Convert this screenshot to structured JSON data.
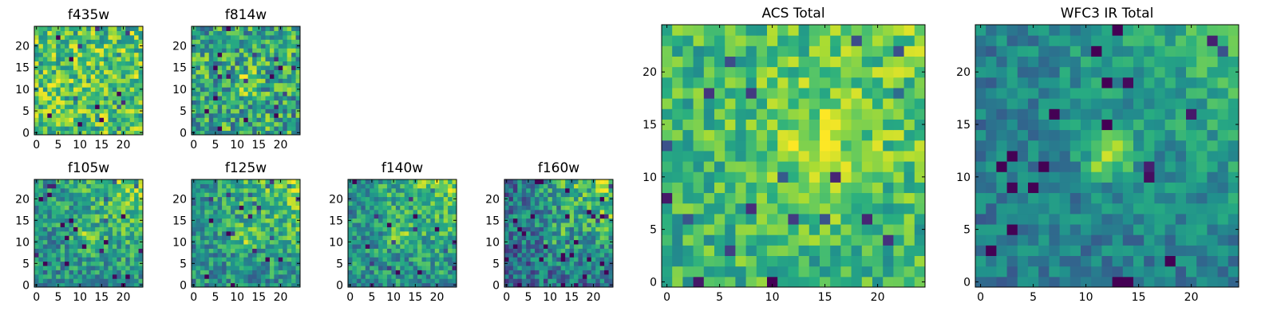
{
  "chart_data": [
    {
      "type": "heatmap",
      "title": "f435w",
      "size": 25,
      "seed": 11,
      "profile": "flat",
      "xticks": [
        0,
        5,
        10,
        15,
        20
      ],
      "yticks": [
        0,
        5,
        10,
        15,
        20
      ],
      "xlim": [
        -0.5,
        24.5
      ],
      "ylim": [
        -0.5,
        24.5
      ],
      "colormap": "viridis"
    },
    {
      "type": "heatmap",
      "title": "f814w",
      "size": 25,
      "seed": 23,
      "profile": "mid",
      "xticks": [
        0,
        5,
        10,
        15,
        20
      ],
      "yticks": [
        0,
        5,
        10,
        15,
        20
      ],
      "xlim": [
        -0.5,
        24.5
      ],
      "ylim": [
        -0.5,
        24.5
      ],
      "colormap": "viridis"
    },
    {
      "type": "heatmap",
      "title": "f105w",
      "size": 25,
      "seed": 37,
      "profile": "corner",
      "xticks": [
        0,
        5,
        10,
        15,
        20
      ],
      "yticks": [
        0,
        5,
        10,
        15,
        20
      ],
      "xlim": [
        -0.5,
        24.5
      ],
      "ylim": [
        -0.5,
        24.5
      ],
      "colormap": "viridis"
    },
    {
      "type": "heatmap",
      "title": "f125w",
      "size": 25,
      "seed": 41,
      "profile": "corner",
      "xticks": [
        0,
        5,
        10,
        15,
        20
      ],
      "yticks": [
        0,
        5,
        10,
        15,
        20
      ],
      "xlim": [
        -0.5,
        24.5
      ],
      "ylim": [
        -0.5,
        24.5
      ],
      "colormap": "viridis"
    },
    {
      "type": "heatmap",
      "title": "f140w",
      "size": 25,
      "seed": 53,
      "profile": "corner",
      "xticks": [
        0,
        5,
        10,
        15,
        20
      ],
      "yticks": [
        0,
        5,
        10,
        15,
        20
      ],
      "xlim": [
        -0.5,
        24.5
      ],
      "ylim": [
        -0.5,
        24.5
      ],
      "colormap": "viridis"
    },
    {
      "type": "heatmap",
      "title": "f160w",
      "size": 25,
      "seed": 67,
      "profile": "cornerdark",
      "xticks": [
        0,
        5,
        10,
        15,
        20
      ],
      "yticks": [
        0,
        5,
        10,
        15,
        20
      ],
      "xlim": [
        -0.5,
        24.5
      ],
      "ylim": [
        -0.5,
        24.5
      ],
      "colormap": "viridis"
    },
    {
      "type": "heatmap",
      "title": "ACS Total",
      "size": 25,
      "seed": 79,
      "profile": "acs",
      "xticks": [
        0,
        5,
        10,
        15,
        20
      ],
      "yticks": [
        0,
        5,
        10,
        15,
        20
      ],
      "xlim": [
        -0.5,
        24.5
      ],
      "ylim": [
        -0.5,
        24.5
      ],
      "colormap": "viridis"
    },
    {
      "type": "heatmap",
      "title": "WFC3 IR Total",
      "size": 25,
      "seed": 97,
      "profile": "wfc3",
      "xticks": [
        0,
        5,
        10,
        15,
        20
      ],
      "yticks": [
        0,
        5,
        10,
        15,
        20
      ],
      "xlim": [
        -0.5,
        24.5
      ],
      "ylim": [
        -0.5,
        24.5
      ],
      "colormap": "viridis"
    }
  ]
}
